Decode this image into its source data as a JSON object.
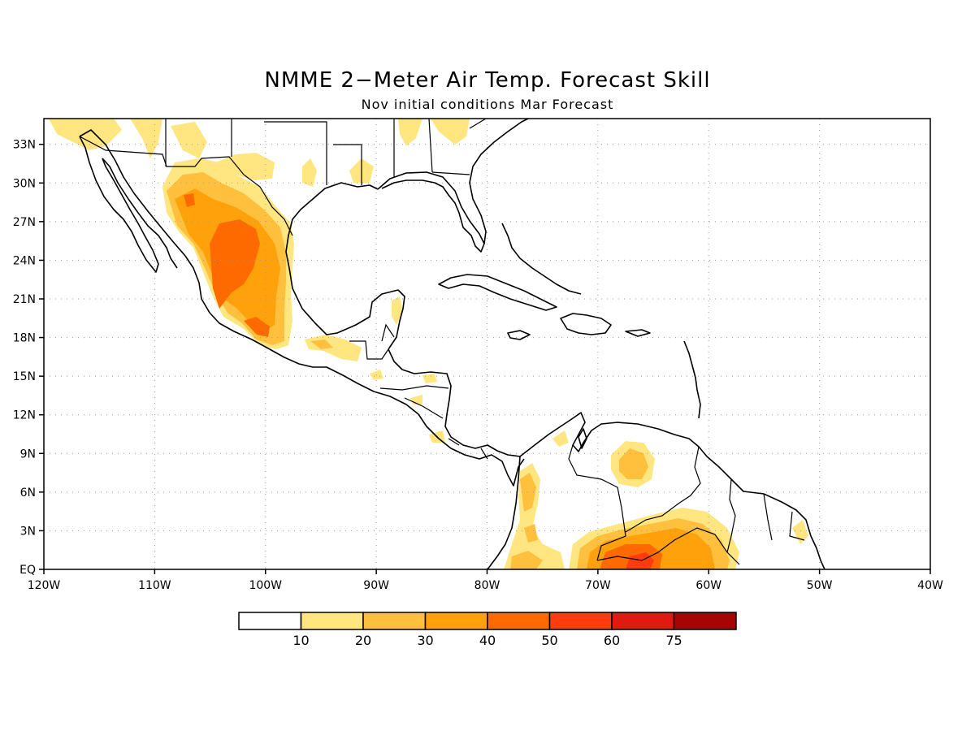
{
  "title": "NMME 2−Meter Air Temp. Forecast Skill",
  "subtitle": "Nov initial conditions  Mar Forecast",
  "map": {
    "lon_range": [
      -120,
      -40
    ],
    "lat_range": [
      0,
      35
    ],
    "lon_ticks": [
      {
        "lon": -120,
        "label": "120W"
      },
      {
        "lon": -110,
        "label": "110W"
      },
      {
        "lon": -100,
        "label": "100W"
      },
      {
        "lon": -90,
        "label": "90W"
      },
      {
        "lon": -80,
        "label": "80W"
      },
      {
        "lon": -70,
        "label": "70W"
      },
      {
        "lon": -60,
        "label": "60W"
      },
      {
        "lon": -50,
        "label": "50W"
      },
      {
        "lon": -40,
        "label": "40W"
      }
    ],
    "lat_ticks": [
      {
        "lat": 0,
        "label": "EQ"
      },
      {
        "lat": 3,
        "label": "3N"
      },
      {
        "lat": 6,
        "label": "6N"
      },
      {
        "lat": 9,
        "label": "9N"
      },
      {
        "lat": 12,
        "label": "12N"
      },
      {
        "lat": 15,
        "label": "15N"
      },
      {
        "lat": 18,
        "label": "18N"
      },
      {
        "lat": 21,
        "label": "21N"
      },
      {
        "lat": 24,
        "label": "24N"
      },
      {
        "lat": 27,
        "label": "27N"
      },
      {
        "lat": 30,
        "label": "30N"
      },
      {
        "lat": 33,
        "label": "33N"
      }
    ],
    "grid": "dotted"
  },
  "colorbar": {
    "colors": [
      "#ffffff",
      "#ffe680",
      "#ffc13d",
      "#ffa10a",
      "#ff6a00",
      "#ff3c10",
      "#e01a10",
      "#a50505"
    ],
    "labels": [
      "10",
      "20",
      "30",
      "40",
      "50",
      "60",
      "75"
    ]
  }
}
